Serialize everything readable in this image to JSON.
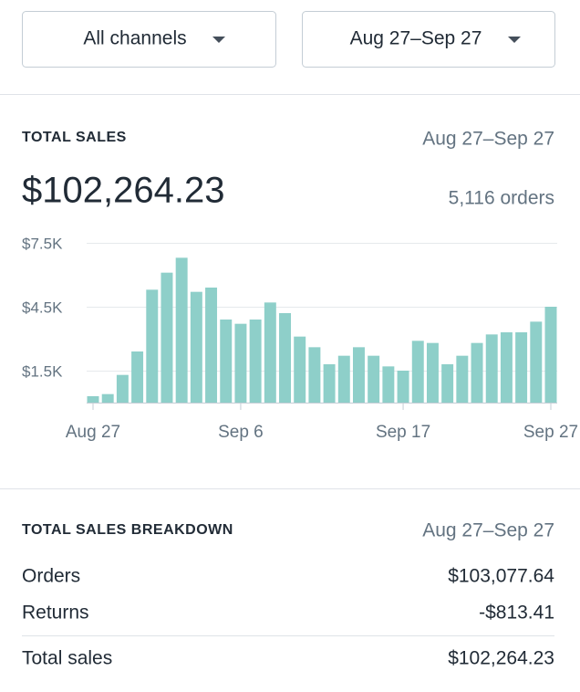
{
  "filters": {
    "channel": "All channels",
    "date_range": "Aug 27–Sep 27"
  },
  "total_sales": {
    "title": "TOTAL SALES",
    "date_range": "Aug 27–Sep 27",
    "amount": "$102,264.23",
    "orders": "5,116 orders"
  },
  "chart_data": {
    "type": "bar",
    "categories": [
      "Aug 27",
      null,
      null,
      null,
      null,
      null,
      null,
      null,
      null,
      null,
      "Sep 6",
      null,
      null,
      null,
      null,
      null,
      null,
      null,
      null,
      null,
      null,
      "Sep 17",
      null,
      null,
      null,
      null,
      null,
      null,
      null,
      null,
      null,
      "Sep 27"
    ],
    "values": [
      300,
      400,
      1300,
      2400,
      5300,
      6100,
      6800,
      5200,
      5400,
      3900,
      3700,
      3900,
      4700,
      4200,
      3100,
      2600,
      1800,
      2200,
      2600,
      2200,
      1700,
      1500,
      2900,
      2800,
      1800,
      2200,
      2800,
      3200,
      3300,
      3300,
      3800,
      4500
    ],
    "color": "#8ecfc9",
    "ylim": [
      0,
      7500
    ],
    "yticks": [
      {
        "value": 1500,
        "label": "$1.5K"
      },
      {
        "value": 4500,
        "label": "$4.5K"
      },
      {
        "value": 7500,
        "label": "$7.5K"
      }
    ],
    "grid": true
  },
  "breakdown": {
    "title": "TOTAL SALES BREAKDOWN",
    "date_range": "Aug 27–Sep 27",
    "rows": [
      [
        "Orders",
        "$103,077.64"
      ],
      [
        "Returns",
        "-$813.41"
      ],
      [
        "Total sales",
        "$102,264.23"
      ]
    ]
  }
}
